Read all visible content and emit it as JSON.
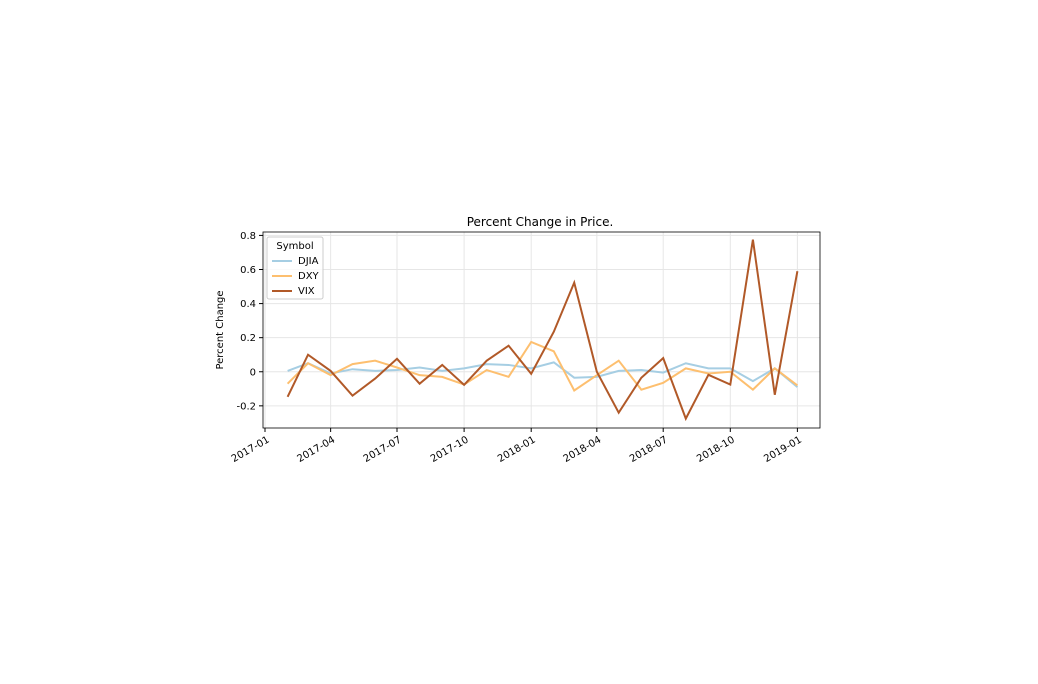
{
  "chart_data": {
    "type": "line",
    "title": "Percent Change in Price.",
    "y_label": "Percent Change",
    "legend_title": "Symbol",
    "legend_position": "upper left",
    "grid": true,
    "x": [
      "2017-02",
      "2017-03",
      "2017-04",
      "2017-05",
      "2017-06",
      "2017-07",
      "2017-08",
      "2017-09",
      "2017-10",
      "2017-11",
      "2017-12",
      "2018-01",
      "2018-02",
      "2018-03",
      "2018-04",
      "2018-05",
      "2018-06",
      "2018-07",
      "2018-08",
      "2018-09",
      "2018-10",
      "2018-11",
      "2018-12",
      "2019-01"
    ],
    "xlim": [
      "2017-01",
      "2019-02"
    ],
    "xticks": [
      "2017-01",
      "2017-04",
      "2017-07",
      "2017-10",
      "2018-01",
      "2018-04",
      "2018-07",
      "2018-10",
      "2019-01"
    ],
    "ylim": [
      -0.33,
      0.82
    ],
    "yticks": [
      -0.2,
      0.0,
      0.2,
      0.4,
      0.6,
      0.8
    ],
    "series": [
      {
        "name": "DJIA",
        "color": "#a6cee3",
        "values": [
          0.005,
          0.05,
          -0.01,
          0.015,
          0.005,
          0.01,
          0.025,
          0.005,
          0.02,
          0.045,
          0.04,
          0.02,
          0.055,
          -0.035,
          -0.03,
          0.005,
          0.01,
          -0.005,
          0.05,
          0.02,
          0.02,
          -0.055,
          0.02,
          -0.09
        ]
      },
      {
        "name": "DXY",
        "color": "#fdbf6f",
        "values": [
          -0.07,
          0.05,
          -0.02,
          0.045,
          0.065,
          0.025,
          -0.02,
          -0.03,
          -0.075,
          0.01,
          -0.03,
          0.175,
          0.12,
          -0.11,
          -0.02,
          0.065,
          -0.105,
          -0.065,
          0.02,
          -0.01,
          0.0,
          -0.105,
          0.02,
          -0.08
        ]
      },
      {
        "name": "VIX",
        "color": "#b15928",
        "values": [
          -0.147,
          0.1,
          0.005,
          -0.14,
          -0.04,
          0.076,
          -0.07,
          0.04,
          -0.077,
          0.065,
          0.153,
          -0.012,
          0.235,
          0.523,
          0.0,
          -0.24,
          -0.035,
          0.08,
          -0.275,
          -0.018,
          -0.075,
          0.775,
          -0.135,
          0.59
        ]
      }
    ]
  }
}
